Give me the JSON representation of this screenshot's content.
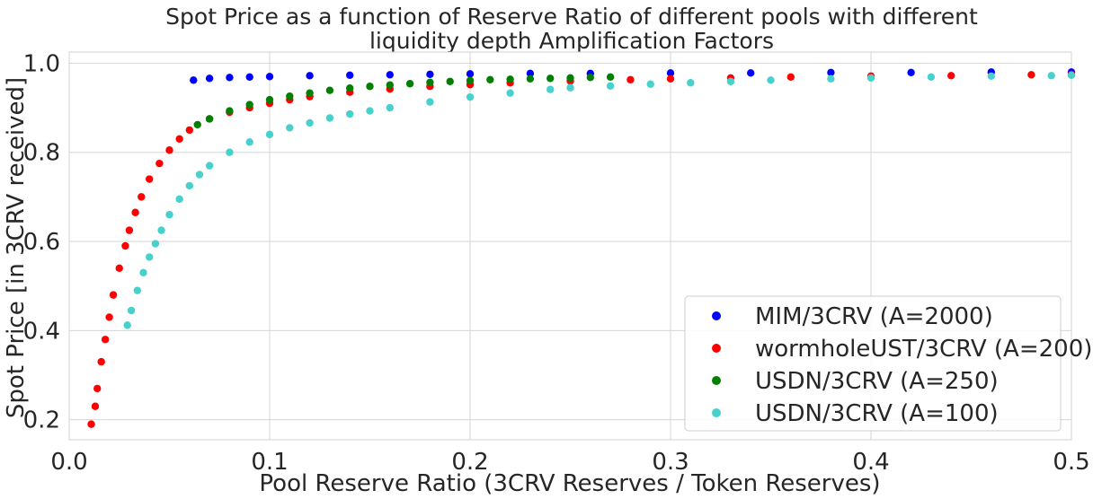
{
  "chart_data": {
    "type": "scatter",
    "title_lines": [
      "Spot Price as a function of Reserve Ratio of different pools with different",
      "liquidity depth Amplification Factors"
    ],
    "xlabel": "Pool Reserve Ratio (3CRV Reserves / Token Reserves)",
    "ylabel": "Spot Price [in 3CRV received]",
    "xlim": [
      0.0,
      0.5
    ],
    "ylim": [
      0.155,
      1.025
    ],
    "xticks": [
      0.0,
      0.1,
      0.2,
      0.3,
      0.4,
      0.5
    ],
    "xtick_labels": [
      "0.0",
      "0.1",
      "0.2",
      "0.3",
      "0.4",
      "0.5"
    ],
    "yticks": [
      0.2,
      0.4,
      0.6,
      0.8,
      1.0
    ],
    "ytick_labels": [
      "0.2",
      "0.4",
      "0.6",
      "0.8",
      "1.0"
    ],
    "grid": true,
    "legend_position": "lower-right",
    "series": [
      {
        "name": "MIM/3CRV (A=2000)",
        "color": "#0000ff",
        "x": [
          0.062,
          0.07,
          0.08,
          0.09,
          0.1,
          0.12,
          0.14,
          0.16,
          0.18,
          0.2,
          0.23,
          0.26,
          0.3,
          0.34,
          0.38,
          0.42,
          0.46,
          0.5
        ],
        "y": [
          0.962,
          0.966,
          0.968,
          0.969,
          0.97,
          0.972,
          0.973,
          0.974,
          0.975,
          0.976,
          0.977,
          0.977,
          0.978,
          0.978,
          0.979,
          0.979,
          0.98,
          0.98
        ]
      },
      {
        "name": "wormholeUST/3CRV (A=200)",
        "color": "#ff0000",
        "x": [
          0.011,
          0.013,
          0.014,
          0.016,
          0.018,
          0.02,
          0.022,
          0.025,
          0.028,
          0.03,
          0.033,
          0.036,
          0.04,
          0.045,
          0.05,
          0.055,
          0.06,
          0.07,
          0.08,
          0.09,
          0.1,
          0.11,
          0.12,
          0.14,
          0.16,
          0.18,
          0.2,
          0.22,
          0.25,
          0.28,
          0.3,
          0.33,
          0.36,
          0.4,
          0.44,
          0.48,
          0.5
        ],
        "y": [
          0.19,
          0.23,
          0.27,
          0.33,
          0.38,
          0.43,
          0.48,
          0.54,
          0.59,
          0.625,
          0.665,
          0.7,
          0.74,
          0.775,
          0.805,
          0.83,
          0.85,
          0.875,
          0.89,
          0.9,
          0.91,
          0.918,
          0.925,
          0.935,
          0.942,
          0.948,
          0.952,
          0.956,
          0.96,
          0.963,
          0.965,
          0.967,
          0.969,
          0.971,
          0.972,
          0.974,
          0.975
        ]
      },
      {
        "name": "USDN/3CRV (A=250)",
        "color": "#008000",
        "x": [
          0.064,
          0.07,
          0.08,
          0.09,
          0.1,
          0.11,
          0.12,
          0.13,
          0.14,
          0.15,
          0.16,
          0.17,
          0.18,
          0.19,
          0.2,
          0.21,
          0.22,
          0.23,
          0.24,
          0.25,
          0.26,
          0.27
        ],
        "y": [
          0.862,
          0.875,
          0.893,
          0.907,
          0.918,
          0.926,
          0.933,
          0.939,
          0.944,
          0.948,
          0.951,
          0.954,
          0.957,
          0.959,
          0.961,
          0.963,
          0.964,
          0.965,
          0.966,
          0.967,
          0.968,
          0.969
        ]
      },
      {
        "name": "USDN/3CRV (A=100)",
        "color": "#48d1cc",
        "x": [
          0.029,
          0.031,
          0.034,
          0.037,
          0.04,
          0.043,
          0.046,
          0.05,
          0.055,
          0.06,
          0.065,
          0.07,
          0.08,
          0.09,
          0.1,
          0.11,
          0.12,
          0.13,
          0.14,
          0.15,
          0.16,
          0.18,
          0.2,
          0.22,
          0.24,
          0.25,
          0.27,
          0.29,
          0.31,
          0.33,
          0.35,
          0.38,
          0.4,
          0.43,
          0.46,
          0.49,
          0.5
        ],
        "y": [
          0.412,
          0.445,
          0.49,
          0.53,
          0.565,
          0.595,
          0.625,
          0.66,
          0.695,
          0.725,
          0.75,
          0.77,
          0.8,
          0.823,
          0.84,
          0.855,
          0.866,
          0.877,
          0.886,
          0.893,
          0.9,
          0.913,
          0.924,
          0.933,
          0.941,
          0.945,
          0.949,
          0.953,
          0.956,
          0.959,
          0.962,
          0.965,
          0.967,
          0.969,
          0.971,
          0.972,
          0.973
        ]
      }
    ]
  }
}
